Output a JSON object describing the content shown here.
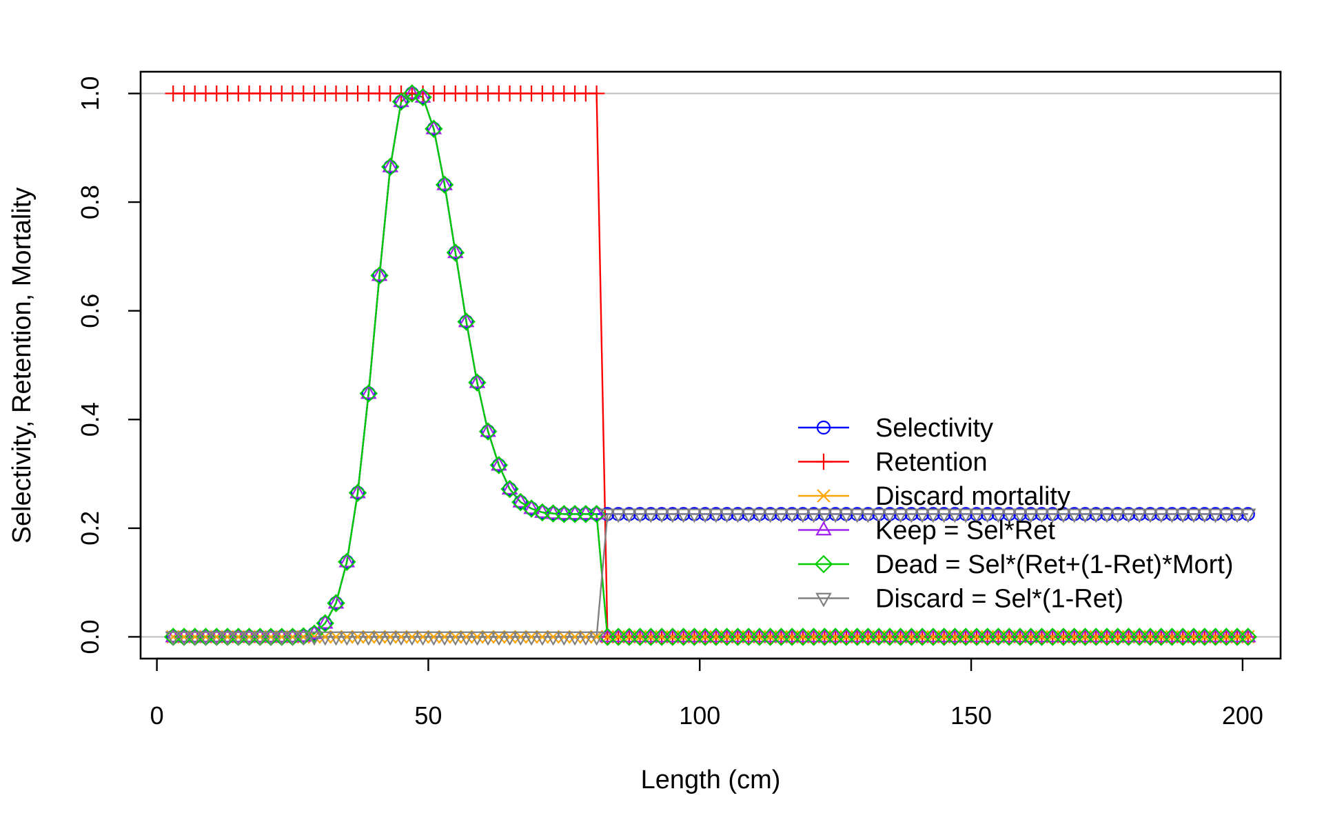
{
  "chart_data": {
    "type": "line",
    "title": "",
    "xlabel": "Length (cm)",
    "ylabel": "Selectivity, Retention, Mortality",
    "xlim": [
      -3,
      207
    ],
    "ylim": [
      -0.04,
      1.04
    ],
    "xticks": [
      "0",
      "50",
      "100",
      "150",
      "200"
    ],
    "yticks": [
      "0.0",
      "0.2",
      "0.4",
      "0.6",
      "0.8",
      "1.0"
    ],
    "reference_lines_y": [
      0,
      1
    ],
    "reference_line_color": "#bebebe",
    "x": [
      3,
      5,
      7,
      9,
      11,
      13,
      15,
      17,
      19,
      21,
      23,
      25,
      27,
      29,
      31,
      33,
      35,
      37,
      39,
      41,
      43,
      45,
      47,
      49,
      51,
      53,
      55,
      57,
      59,
      61,
      63,
      65,
      67,
      69,
      71,
      73,
      75,
      77,
      79,
      81,
      83,
      85,
      87,
      89,
      91,
      93,
      95,
      97,
      99,
      101,
      103,
      105,
      107,
      109,
      111,
      113,
      115,
      117,
      119,
      121,
      123,
      125,
      127,
      129,
      131,
      133,
      135,
      137,
      139,
      141,
      143,
      145,
      147,
      149,
      151,
      153,
      155,
      157,
      159,
      161,
      163,
      165,
      167,
      169,
      171,
      173,
      175,
      177,
      179,
      181,
      183,
      185,
      187,
      189,
      191,
      193,
      195,
      197,
      199,
      201
    ],
    "series": [
      {
        "name": "Selectivity",
        "color": "#0000ff",
        "marker": "circle",
        "values": [
          0,
          0,
          0,
          0,
          0,
          0,
          0,
          0,
          0,
          0,
          0,
          0,
          0.001,
          0.006,
          0.025,
          0.062,
          0.138,
          0.265,
          0.448,
          0.665,
          0.865,
          0.985,
          1.0,
          0.993,
          0.935,
          0.832,
          0.707,
          0.58,
          0.468,
          0.378,
          0.316,
          0.272,
          0.248,
          0.236,
          0.229,
          0.227,
          0.226,
          0.226,
          0.226,
          0.226,
          0.226,
          0.226,
          0.226,
          0.226,
          0.226,
          0.226,
          0.226,
          0.226,
          0.226,
          0.226,
          0.226,
          0.226,
          0.226,
          0.226,
          0.226,
          0.226,
          0.226,
          0.226,
          0.226,
          0.226,
          0.226,
          0.226,
          0.226,
          0.226,
          0.226,
          0.226,
          0.226,
          0.226,
          0.226,
          0.226,
          0.226,
          0.226,
          0.226,
          0.226,
          0.226,
          0.226,
          0.226,
          0.226,
          0.226,
          0.226,
          0.226,
          0.226,
          0.226,
          0.226,
          0.226,
          0.226,
          0.226,
          0.226,
          0.226,
          0.226,
          0.226,
          0.226,
          0.226,
          0.226,
          0.226,
          0.226,
          0.226,
          0.226,
          0.226,
          0.226
        ]
      },
      {
        "name": "Retention",
        "color": "#ff0000",
        "marker": "plus",
        "values": [
          1,
          1,
          1,
          1,
          1,
          1,
          1,
          1,
          1,
          1,
          1,
          1,
          1,
          1,
          1,
          1,
          1,
          1,
          1,
          1,
          1,
          1,
          1,
          1,
          1,
          1,
          1,
          1,
          1,
          1,
          1,
          1,
          1,
          1,
          1,
          1,
          1,
          1,
          1,
          1,
          0,
          0,
          0,
          0,
          0,
          0,
          0,
          0,
          0,
          0,
          0,
          0,
          0,
          0,
          0,
          0,
          0,
          0,
          0,
          0,
          0,
          0,
          0,
          0,
          0,
          0,
          0,
          0,
          0,
          0,
          0,
          0,
          0,
          0,
          0,
          0,
          0,
          0,
          0,
          0,
          0,
          0,
          0,
          0,
          0,
          0,
          0,
          0,
          0,
          0,
          0,
          0,
          0,
          0,
          0,
          0,
          0,
          0,
          0,
          0
        ]
      },
      {
        "name": "Discard mortality",
        "color": "#ffa500",
        "marker": "cross",
        "values": [
          0,
          0,
          0,
          0,
          0,
          0,
          0,
          0,
          0,
          0,
          0,
          0,
          0,
          0,
          0,
          0,
          0,
          0,
          0,
          0,
          0,
          0,
          0,
          0,
          0,
          0,
          0,
          0,
          0,
          0,
          0,
          0,
          0,
          0,
          0,
          0,
          0,
          0,
          0,
          0,
          0,
          0,
          0,
          0,
          0,
          0,
          0,
          0,
          0,
          0,
          0,
          0,
          0,
          0,
          0,
          0,
          0,
          0,
          0,
          0,
          0,
          0,
          0,
          0,
          0,
          0,
          0,
          0,
          0,
          0,
          0,
          0,
          0,
          0,
          0,
          0,
          0,
          0,
          0,
          0,
          0,
          0,
          0,
          0,
          0,
          0,
          0,
          0,
          0,
          0,
          0,
          0,
          0,
          0,
          0,
          0,
          0,
          0,
          0,
          0
        ]
      },
      {
        "name": "Keep = Sel*Ret",
        "color": "#a020f0",
        "marker": "triangle",
        "values": [
          0,
          0,
          0,
          0,
          0,
          0,
          0,
          0,
          0,
          0,
          0,
          0,
          0.001,
          0.006,
          0.025,
          0.062,
          0.138,
          0.265,
          0.448,
          0.665,
          0.865,
          0.985,
          1.0,
          0.993,
          0.935,
          0.832,
          0.707,
          0.58,
          0.468,
          0.378,
          0.316,
          0.272,
          0.248,
          0.236,
          0.229,
          0.227,
          0.226,
          0.226,
          0.226,
          0.226,
          0,
          0,
          0,
          0,
          0,
          0,
          0,
          0,
          0,
          0,
          0,
          0,
          0,
          0,
          0,
          0,
          0,
          0,
          0,
          0,
          0,
          0,
          0,
          0,
          0,
          0,
          0,
          0,
          0,
          0,
          0,
          0,
          0,
          0,
          0,
          0,
          0,
          0,
          0,
          0,
          0,
          0,
          0,
          0,
          0,
          0,
          0,
          0,
          0,
          0,
          0,
          0,
          0,
          0,
          0,
          0,
          0,
          0,
          0,
          0
        ]
      },
      {
        "name": "Dead = Sel*(Ret+(1-Ret)*Mort)",
        "color": "#00cd00",
        "marker": "diamond",
        "values": [
          0,
          0,
          0,
          0,
          0,
          0,
          0,
          0,
          0,
          0,
          0,
          0,
          0.001,
          0.006,
          0.025,
          0.062,
          0.138,
          0.265,
          0.448,
          0.665,
          0.865,
          0.985,
          1.0,
          0.993,
          0.935,
          0.832,
          0.707,
          0.58,
          0.468,
          0.378,
          0.316,
          0.272,
          0.248,
          0.236,
          0.229,
          0.227,
          0.226,
          0.226,
          0.226,
          0.226,
          0,
          0,
          0,
          0,
          0,
          0,
          0,
          0,
          0,
          0,
          0,
          0,
          0,
          0,
          0,
          0,
          0,
          0,
          0,
          0,
          0,
          0,
          0,
          0,
          0,
          0,
          0,
          0,
          0,
          0,
          0,
          0,
          0,
          0,
          0,
          0,
          0,
          0,
          0,
          0,
          0,
          0,
          0,
          0,
          0,
          0,
          0,
          0,
          0,
          0,
          0,
          0,
          0,
          0,
          0,
          0,
          0,
          0,
          0,
          0
        ]
      },
      {
        "name": "Discard = Sel*(1-Ret)",
        "color": "#808080",
        "marker": "triangle-down",
        "values": [
          0,
          0,
          0,
          0,
          0,
          0,
          0,
          0,
          0,
          0,
          0,
          0,
          0,
          0,
          0,
          0,
          0,
          0,
          0,
          0,
          0,
          0,
          0,
          0,
          0,
          0,
          0,
          0,
          0,
          0,
          0,
          0,
          0,
          0,
          0,
          0,
          0,
          0,
          0,
          0,
          0.226,
          0.226,
          0.226,
          0.226,
          0.226,
          0.226,
          0.226,
          0.226,
          0.226,
          0.226,
          0.226,
          0.226,
          0.226,
          0.226,
          0.226,
          0.226,
          0.226,
          0.226,
          0.226,
          0.226,
          0.226,
          0.226,
          0.226,
          0.226,
          0.226,
          0.226,
          0.226,
          0.226,
          0.226,
          0.226,
          0.226,
          0.226,
          0.226,
          0.226,
          0.226,
          0.226,
          0.226,
          0.226,
          0.226,
          0.226,
          0.226,
          0.226,
          0.226,
          0.226,
          0.226,
          0.226,
          0.226,
          0.226,
          0.226,
          0.226,
          0.226,
          0.226,
          0.226,
          0.226,
          0.226,
          0.226,
          0.226,
          0.226,
          0.226,
          0.226
        ]
      }
    ],
    "legend": {
      "placement": "right",
      "entries": [
        "Selectivity",
        "Retention",
        "Discard mortality",
        "Keep = Sel*Ret",
        "Dead = Sel*(Ret+(1-Ret)*Mort)",
        "Discard = Sel*(1-Ret)"
      ]
    }
  }
}
